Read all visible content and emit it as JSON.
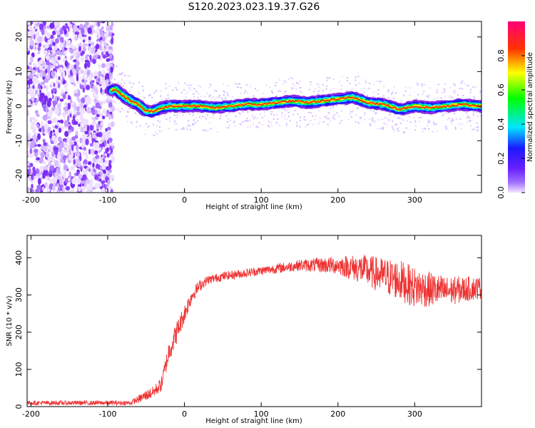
{
  "title": "S120.2023.023.19.37.G26",
  "chart_data": [
    {
      "type": "heatmap",
      "xlabel": "Height of straight line (km)",
      "ylabel": "Frequency (Hz)",
      "xlim": [
        -205,
        387
      ],
      "ylim": [
        -25,
        24.5
      ],
      "xticks": [
        -200,
        -100,
        0,
        100,
        200,
        300
      ],
      "yticks": [
        20,
        10,
        0,
        -10,
        -20
      ],
      "colorbar": {
        "label": "Normalized spectral amplitude",
        "range": [
          0.0,
          1.0
        ],
        "ticks": [
          0.0,
          0.2,
          0.4,
          0.6,
          0.8
        ],
        "colormap": "rainbow (white-violet-blue-cyan-green-yellow-red-magenta)",
        "colors": [
          "#f2e6ff",
          "#8a2be2",
          "#1a1aff",
          "#00e5ff",
          "#00ff00",
          "#ffff00",
          "#ff3300",
          "#ff0077"
        ]
      },
      "noise_region_x": [
        -205,
        -93
      ],
      "ridge": {
        "x": [
          -100,
          -90,
          -80,
          -70,
          -60,
          -50,
          -40,
          -30,
          -20,
          -10,
          0,
          20,
          40,
          60,
          80,
          100,
          120,
          140,
          160,
          180,
          200,
          220,
          240,
          260,
          280,
          300,
          320,
          340,
          360,
          387
        ],
        "freq": [
          4,
          5,
          3,
          1.5,
          0.5,
          -1.5,
          -1.5,
          -0.5,
          0,
          0,
          0,
          0,
          -0.5,
          0,
          0.5,
          0.5,
          1,
          1.5,
          1,
          1.5,
          2,
          2.5,
          1,
          0.5,
          -1,
          0,
          -0.5,
          0,
          0.5,
          0
        ]
      }
    },
    {
      "type": "line",
      "xlabel": "Height of straight line (km)",
      "ylabel": "SNR (10 * v/v)",
      "xlim": [
        -205,
        387
      ],
      "ylim": [
        0,
        460
      ],
      "xticks": [
        -200,
        -100,
        0,
        100,
        200,
        300
      ],
      "yticks": [
        0,
        100,
        200,
        300,
        400
      ],
      "color": "#ee3333",
      "series": [
        {
          "x": [
            -205,
            -150,
            -100,
            -70,
            -60,
            -50,
            -40,
            -30,
            -20,
            -10,
            0,
            10,
            20,
            30,
            50,
            100,
            150,
            200,
            230,
            260,
            280,
            300,
            340,
            387
          ],
          "values": [
            10,
            10,
            10,
            10,
            20,
            30,
            40,
            60,
            150,
            200,
            250,
            300,
            325,
            340,
            350,
            365,
            380,
            380,
            370,
            350,
            340,
            320,
            310,
            320
          ],
          "noise": [
            6,
            6,
            6,
            6,
            10,
            15,
            15,
            20,
            30,
            30,
            25,
            20,
            15,
            12,
            12,
            12,
            15,
            25,
            40,
            50,
            55,
            55,
            40,
            30
          ]
        }
      ]
    }
  ]
}
